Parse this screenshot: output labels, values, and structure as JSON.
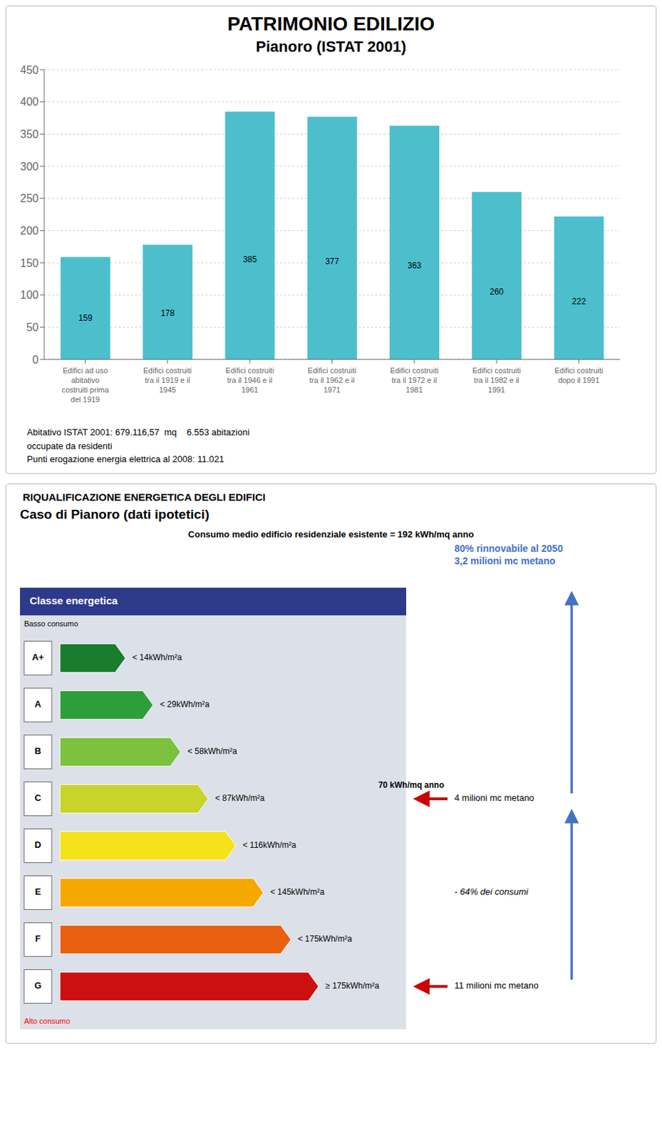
{
  "chart_data": [
    {
      "type": "bar",
      "title": "PATRIMONIO EDILIZIO",
      "subtitle": "Pianoro (ISTAT 2001)",
      "categories": [
        "Edifici ad uso\nabitativo\ncostruiti prima\ndel 1919",
        "Edifici costruiti\ntra il 1919 e il\n1945",
        "Edifici costruiti\ntra il 1946 e il\n1961",
        "Edifici costruiti\ntra il 1962 e il\n1971",
        "Edifici costruiti\ntra il 1972 e il\n1981",
        "Edifici costruiti\ntra il 1982 e il\n1991",
        "Edifici costruiti\ndopo il 1991"
      ],
      "values": [
        159,
        178,
        385,
        377,
        363,
        260,
        222
      ],
      "color": "#4dbfcc",
      "ylim": [
        0,
        450
      ],
      "yticks": [
        0,
        50,
        100,
        150,
        200,
        250,
        300,
        350,
        400,
        450
      ],
      "grid": true,
      "data_labels": true,
      "annotations": [
        "Abitativo ISTAT 2001: 679.116,57  mq    6.553 abitazioni\noccupate da residenti\nPunti erogazione energia elettrica al 2008: 11.021"
      ]
    },
    {
      "type": "diagram",
      "title": "RIQUALIFICAZIONE ENERGETICA DEGLI EDIFICI",
      "subtitle": "Caso di Pianoro (dati ipotetici)",
      "categories": [
        "A+",
        "A",
        "B",
        "C",
        "D",
        "E",
        "F",
        "G"
      ],
      "colors": [
        "#1a7c2e",
        "#2e9e3a",
        "#7dc23e",
        "#c8d42a",
        "#f5e21a",
        "#f5a800",
        "#e86010",
        "#cc1010"
      ],
      "annotations": [
        "Consumo medio edificio residenziale esistente = 192 kWh/mq anno",
        "Classe energetica",
        "Basso consumo",
        "Alto consumo",
        "< 14kWh/m²a",
        "< 29kWh/m²a",
        "< 58kWh/m²a",
        "< 87kWh/m²a",
        "< 116kWh/m²a",
        "< 145kWh/m²a",
        "< 175kWh/m²a",
        "≥ 175kWh/m²a",
        "80% rinnovabile al 2050\n3,2 milioni mc metano",
        "4 milioni mc metano",
        "- 64% dei consumi",
        "11 milioni mc metano",
        "70 kWh/mq anno"
      ]
    }
  ]
}
